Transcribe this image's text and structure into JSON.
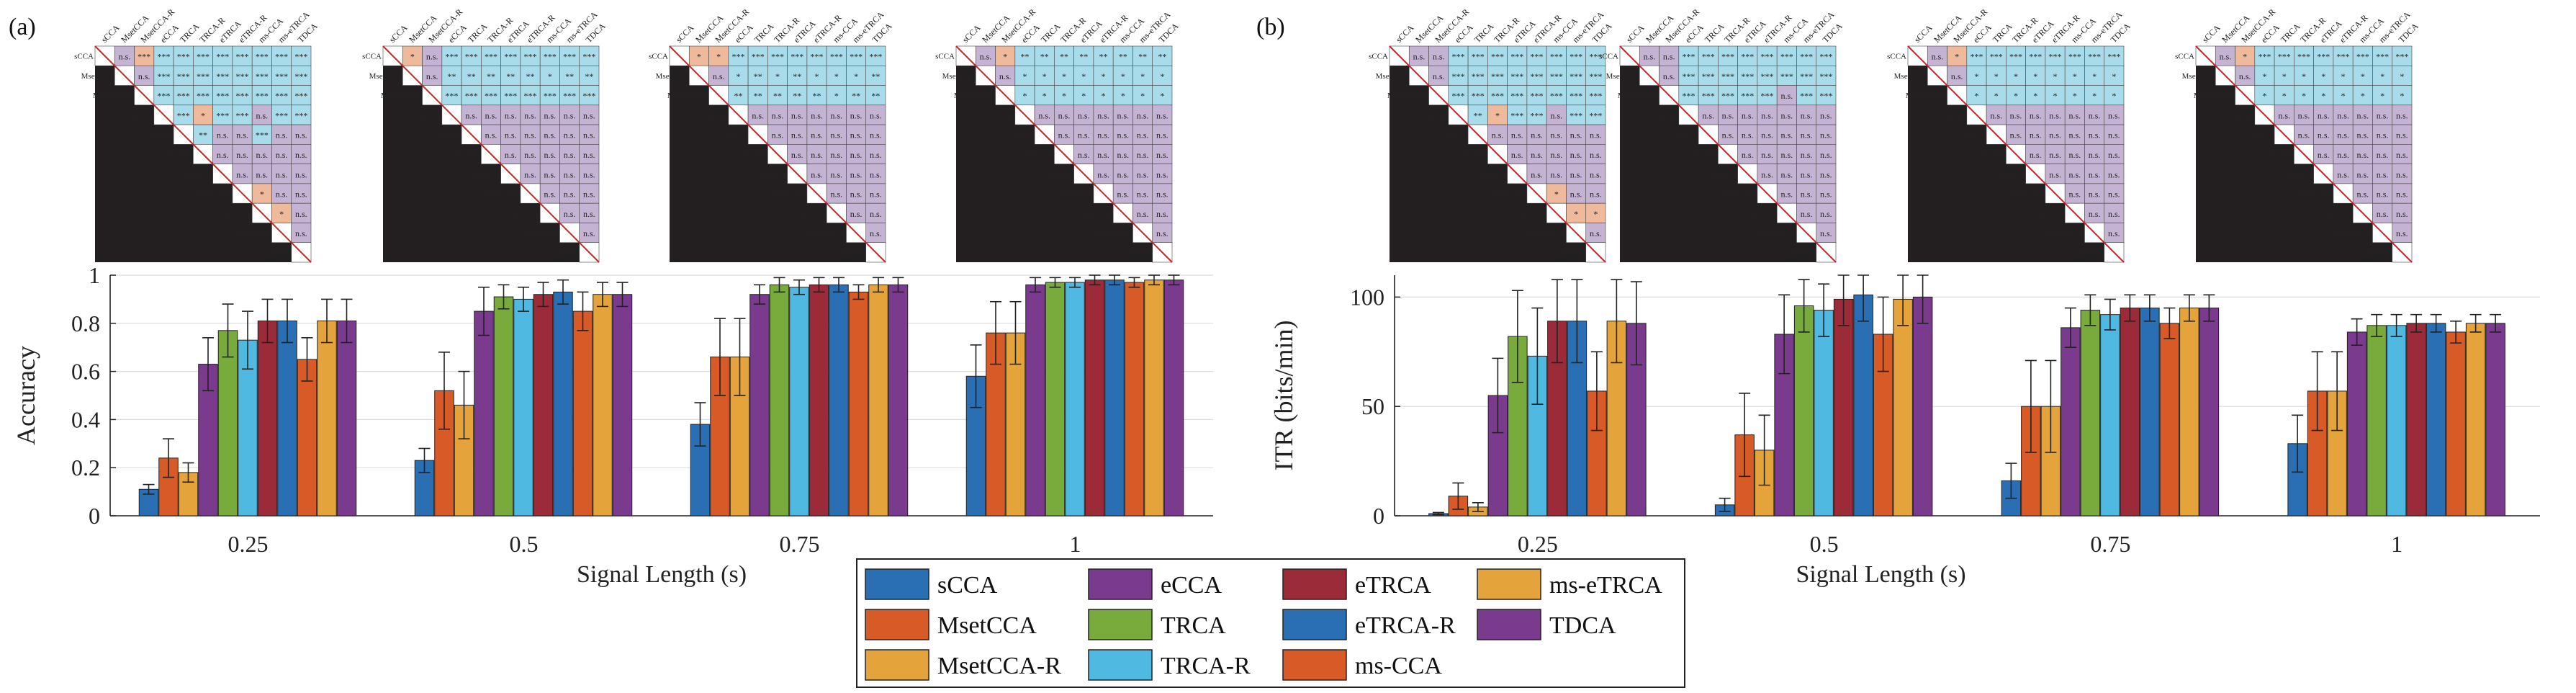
{
  "panels": [
    {
      "label": "(a)",
      "xlabel": "Signal Length (s)",
      "ylabel": "Accuracy",
      "ylim": [
        0,
        1
      ],
      "yticks": [
        "0",
        "0.2",
        "0.4",
        "0.6",
        "0.8",
        "1"
      ],
      "ytick_values": [
        0,
        0.2,
        0.4,
        0.6,
        0.8,
        1
      ]
    },
    {
      "label": "(b)",
      "xlabel": "Signal Length (s)",
      "ylabel": "ITR (bits/min)",
      "ylim": [
        0,
        110
      ],
      "yticks": [
        "0",
        "50",
        "100"
      ],
      "ytick_values": [
        0,
        50,
        100
      ]
    }
  ],
  "legend": {
    "placement": "bottom-center",
    "entries": [
      "sCCA",
      "MsetCCA",
      "MsetCCA-R",
      "eCCA",
      "TRCA",
      "TRCA-R",
      "eTRCA",
      "eTRCA-R",
      "ms-CCA",
      "ms-eTRCA",
      "TDCA"
    ]
  },
  "matrix_methods": [
    "sCCA",
    "MsetCCA",
    "MsetCCA-R",
    "eCCA",
    "TRCA",
    "TRCA-R",
    "eTRCA",
    "eTRCA-R",
    "ms-CCA",
    "ms-eTRCA",
    "TDCA"
  ],
  "significance_colors": {
    "significant_positive": "#a9dcea",
    "significant_negative": "#efb99c",
    "not_significant": "#c5b3d4",
    "lower_triangle": "#231f20",
    "diagonal_line": "#e41a1c"
  },
  "chart_data": [
    {
      "type": "bar",
      "title": "",
      "xlabel": "Signal Length (s)",
      "ylabel": "Accuracy",
      "ylim": [
        0,
        1
      ],
      "grid": true,
      "categories": [
        "0.25",
        "0.5",
        "0.75",
        "1"
      ],
      "series": [
        {
          "name": "sCCA",
          "color": "#2a6fb3",
          "values": [
            0.11,
            0.23,
            0.38,
            0.58
          ],
          "errors": [
            0.02,
            0.05,
            0.09,
            0.13
          ]
        },
        {
          "name": "MsetCCA",
          "color": "#d85b27",
          "values": [
            0.24,
            0.52,
            0.66,
            0.76
          ],
          "errors": [
            0.08,
            0.16,
            0.16,
            0.13
          ]
        },
        {
          "name": "MsetCCA-R",
          "color": "#e4a43b",
          "values": [
            0.18,
            0.46,
            0.66,
            0.76
          ],
          "errors": [
            0.04,
            0.14,
            0.16,
            0.13
          ]
        },
        {
          "name": "eCCA",
          "color": "#7a3a8e",
          "values": [
            0.63,
            0.85,
            0.92,
            0.96
          ],
          "errors": [
            0.11,
            0.1,
            0.04,
            0.03
          ]
        },
        {
          "name": "TRCA",
          "color": "#78ab3c",
          "values": [
            0.77,
            0.91,
            0.96,
            0.97
          ],
          "errors": [
            0.11,
            0.05,
            0.03,
            0.02
          ]
        },
        {
          "name": "TRCA-R",
          "color": "#4fb9e2",
          "values": [
            0.73,
            0.9,
            0.95,
            0.97
          ],
          "errors": [
            0.12,
            0.05,
            0.03,
            0.02
          ]
        },
        {
          "name": "eTRCA",
          "color": "#9c2b3a",
          "values": [
            0.81,
            0.92,
            0.96,
            0.98
          ],
          "errors": [
            0.09,
            0.05,
            0.03,
            0.02
          ]
        },
        {
          "name": "eTRCA-R",
          "color": "#2a6fb3",
          "values": [
            0.81,
            0.93,
            0.96,
            0.98
          ],
          "errors": [
            0.09,
            0.05,
            0.03,
            0.02
          ]
        },
        {
          "name": "ms-CCA",
          "color": "#d85b27",
          "values": [
            0.65,
            0.85,
            0.93,
            0.97
          ],
          "errors": [
            0.09,
            0.08,
            0.03,
            0.02
          ]
        },
        {
          "name": "ms-eTRCA",
          "color": "#e4a43b",
          "values": [
            0.81,
            0.92,
            0.96,
            0.98
          ],
          "errors": [
            0.09,
            0.05,
            0.03,
            0.02
          ]
        },
        {
          "name": "TDCA",
          "color": "#7a3a8e",
          "values": [
            0.81,
            0.92,
            0.96,
            0.98
          ],
          "errors": [
            0.09,
            0.05,
            0.03,
            0.02
          ]
        }
      ]
    },
    {
      "type": "bar",
      "title": "",
      "xlabel": "Signal Length (s)",
      "ylabel": "ITR (bits/min)",
      "ylim": [
        0,
        110
      ],
      "grid": true,
      "categories": [
        "0.25",
        "0.5",
        "0.75",
        "1"
      ],
      "series": [
        {
          "name": "sCCA",
          "color": "#2a6fb3",
          "values": [
            1,
            5,
            16,
            33
          ],
          "errors": [
            0.5,
            3,
            8,
            13
          ]
        },
        {
          "name": "MsetCCA",
          "color": "#d85b27",
          "values": [
            9,
            37,
            50,
            57
          ],
          "errors": [
            6,
            19,
            21,
            18
          ]
        },
        {
          "name": "MsetCCA-R",
          "color": "#e4a43b",
          "values": [
            4,
            30,
            50,
            57
          ],
          "errors": [
            2,
            16,
            21,
            18
          ]
        },
        {
          "name": "eCCA",
          "color": "#7a3a8e",
          "values": [
            55,
            83,
            86,
            84
          ],
          "errors": [
            17,
            18,
            9,
            6
          ]
        },
        {
          "name": "TRCA",
          "color": "#78ab3c",
          "values": [
            82,
            96,
            94,
            87
          ],
          "errors": [
            21,
            12,
            7,
            5
          ]
        },
        {
          "name": "TRCA-R",
          "color": "#4fb9e2",
          "values": [
            73,
            94,
            92,
            87
          ],
          "errors": [
            22,
            12,
            7,
            5
          ]
        },
        {
          "name": "eTRCA",
          "color": "#9c2b3a",
          "values": [
            89,
            99,
            95,
            88
          ],
          "errors": [
            19,
            12,
            6,
            4
          ]
        },
        {
          "name": "eTRCA-R",
          "color": "#2a6fb3",
          "values": [
            89,
            101,
            95,
            88
          ],
          "errors": [
            19,
            12,
            6,
            4
          ]
        },
        {
          "name": "ms-CCA",
          "color": "#d85b27",
          "values": [
            57,
            83,
            88,
            84
          ],
          "errors": [
            18,
            17,
            7,
            5
          ]
        },
        {
          "name": "ms-eTRCA",
          "color": "#e4a43b",
          "values": [
            89,
            99,
            95,
            88
          ],
          "errors": [
            19,
            12,
            6,
            4
          ]
        },
        {
          "name": "TDCA",
          "color": "#7a3a8e",
          "values": [
            88,
            100,
            95,
            88
          ],
          "errors": [
            19,
            12,
            6,
            4
          ]
        }
      ]
    },
    {
      "type": "table",
      "title": "",
      "panel": "(a)",
      "signal_length": "0.25",
      "rows": [
        [
          "n.s.",
          "***",
          "***",
          "***",
          "***",
          "***",
          "***",
          "***",
          "***",
          "***"
        ],
        [
          "n.s.",
          "***",
          "***",
          "***",
          "***",
          "***",
          "***",
          "***",
          "***"
        ],
        [
          "***",
          "***",
          "***",
          "***",
          "***",
          "***",
          "***",
          "***"
        ],
        [
          "***",
          "*",
          "***",
          "***",
          "n.s.",
          "***",
          "***"
        ],
        [
          "**",
          "n.s.",
          "n.s.",
          "***",
          "n.s.",
          "n.s."
        ],
        [
          "n.s.",
          "n.s.",
          "n.s.",
          "n.s.",
          "n.s."
        ],
        [
          "n.s.",
          "n.s.",
          "n.s.",
          "n.s."
        ],
        [
          "*",
          "n.s.",
          "n.s."
        ],
        [
          "*",
          "n.s."
        ],
        [
          "n.s."
        ]
      ]
    },
    {
      "type": "table",
      "title": "",
      "panel": "(a)",
      "signal_length": "0.5",
      "rows": [
        [
          "*",
          "n.s.",
          "***",
          "***",
          "***",
          "***",
          "***",
          "***",
          "***",
          "***"
        ],
        [
          "n.s.",
          "**",
          "**",
          "**",
          "**",
          "**",
          "*",
          "**",
          "**"
        ],
        [
          "***",
          "***",
          "***",
          "***",
          "***",
          "***",
          "***",
          "***"
        ],
        [
          "n.s.",
          "n.s.",
          "n.s.",
          "n.s.",
          "n.s.",
          "n.s.",
          "n.s."
        ],
        [
          "n.s.",
          "n.s.",
          "n.s.",
          "n.s.",
          "n.s.",
          "n.s."
        ],
        [
          "n.s.",
          "n.s.",
          "n.s.",
          "n.s.",
          "n.s."
        ],
        [
          "n.s.",
          "n.s.",
          "n.s.",
          "n.s."
        ],
        [
          "n.s.",
          "n.s.",
          "n.s."
        ],
        [
          "n.s.",
          "n.s."
        ],
        [
          "n.s."
        ]
      ]
    },
    {
      "type": "table",
      "title": "",
      "panel": "(a)",
      "signal_length": "0.75",
      "rows": [
        [
          "*",
          "*",
          "***",
          "***",
          "***",
          "***",
          "***",
          "***",
          "***",
          "***"
        ],
        [
          "n.s.",
          "*",
          "**",
          "*",
          "**",
          "*",
          "*",
          "*",
          "**"
        ],
        [
          "**",
          "**",
          "**",
          "**",
          "**",
          "*",
          "**",
          "**"
        ],
        [
          "n.s.",
          "n.s.",
          "n.s.",
          "n.s.",
          "n.s.",
          "n.s.",
          "n.s."
        ],
        [
          "n.s.",
          "n.s.",
          "n.s.",
          "n.s.",
          "n.s.",
          "n.s."
        ],
        [
          "n.s.",
          "n.s.",
          "n.s.",
          "n.s.",
          "n.s."
        ],
        [
          "n.s.",
          "n.s.",
          "n.s.",
          "n.s."
        ],
        [
          "n.s.",
          "n.s.",
          "n.s."
        ],
        [
          "n.s.",
          "n.s."
        ],
        [
          "n.s."
        ]
      ]
    },
    {
      "type": "table",
      "title": "",
      "panel": "(a)",
      "signal_length": "1",
      "rows": [
        [
          "n.s.",
          "*",
          "**",
          "**",
          "**",
          "**",
          "**",
          "**",
          "**",
          "**"
        ],
        [
          "n.s.",
          "*",
          "*",
          "*",
          "*",
          "*",
          "*",
          "*",
          "*"
        ],
        [
          "*",
          "*",
          "*",
          "*",
          "*",
          "*",
          "*",
          "*"
        ],
        [
          "n.s.",
          "n.s.",
          "n.s.",
          "n.s.",
          "n.s.",
          "n.s.",
          "n.s."
        ],
        [
          "n.s.",
          "n.s.",
          "n.s.",
          "n.s.",
          "n.s.",
          "n.s."
        ],
        [
          "n.s.",
          "n.s.",
          "n.s.",
          "n.s.",
          "n.s."
        ],
        [
          "n.s.",
          "n.s.",
          "n.s.",
          "n.s."
        ],
        [
          "n.s.",
          "n.s.",
          "n.s."
        ],
        [
          "n.s.",
          "n.s."
        ],
        [
          "n.s."
        ]
      ]
    },
    {
      "type": "table",
      "title": "",
      "panel": "(b)",
      "signal_length": "0.25",
      "rows": [
        [
          "n.s.",
          "n.s.",
          "***",
          "***",
          "***",
          "***",
          "***",
          "***",
          "***",
          "***"
        ],
        [
          "n.s.",
          "***",
          "***",
          "***",
          "***",
          "***",
          "***",
          "***",
          "***"
        ],
        [
          "***",
          "***",
          "***",
          "***",
          "***",
          "***",
          "***",
          "***"
        ],
        [
          "**",
          "*",
          "***",
          "***",
          "n.s.",
          "***",
          "***"
        ],
        [
          "n.s.",
          "n.s.",
          "n.s.",
          "n.s.",
          "n.s.",
          "n.s."
        ],
        [
          "n.s.",
          "n.s.",
          "n.s.",
          "n.s.",
          "n.s."
        ],
        [
          "n.s.",
          "n.s.",
          "n.s.",
          "n.s."
        ],
        [
          "*",
          "n.s.",
          "n.s."
        ],
        [
          "*",
          "*"
        ],
        [
          "n.s."
        ]
      ]
    },
    {
      "type": "table",
      "title": "",
      "panel": "(b)",
      "signal_length": "0.5",
      "rows": [
        [
          "n.s.",
          "n.s.",
          "***",
          "***",
          "***",
          "***",
          "***",
          "***",
          "***",
          "***"
        ],
        [
          "n.s.",
          "***",
          "***",
          "***",
          "***",
          "***",
          "***",
          "***",
          "***"
        ],
        [
          "***",
          "***",
          "***",
          "***",
          "***",
          "n.s.",
          "***",
          "***"
        ],
        [
          "n.s.",
          "n.s.",
          "n.s.",
          "n.s.",
          "n.s.",
          "n.s.",
          "n.s."
        ],
        [
          "n.s.",
          "n.s.",
          "n.s.",
          "n.s.",
          "n.s.",
          "n.s."
        ],
        [
          "n.s.",
          "n.s.",
          "n.s.",
          "n.s.",
          "n.s."
        ],
        [
          "n.s.",
          "n.s.",
          "n.s.",
          "n.s."
        ],
        [
          "n.s.",
          "n.s.",
          "n.s."
        ],
        [
          "n.s.",
          "n.s."
        ],
        [
          "n.s."
        ]
      ]
    },
    {
      "type": "table",
      "title": "",
      "panel": "(b)",
      "signal_length": "0.75",
      "rows": [
        [
          "n.s.",
          "*",
          "***",
          "***",
          "***",
          "***",
          "***",
          "***",
          "***",
          "***"
        ],
        [
          "n.s.",
          "*",
          "*",
          "*",
          "*",
          "*",
          "*",
          "*",
          "*"
        ],
        [
          "*",
          "*",
          "*",
          "*",
          "*",
          "*",
          "*",
          "*"
        ],
        [
          "n.s.",
          "n.s.",
          "n.s.",
          "n.s.",
          "n.s.",
          "n.s.",
          "n.s."
        ],
        [
          "n.s.",
          "n.s.",
          "n.s.",
          "n.s.",
          "n.s.",
          "n.s."
        ],
        [
          "n.s.",
          "n.s.",
          "n.s.",
          "n.s.",
          "n.s."
        ],
        [
          "n.s.",
          "n.s.",
          "n.s.",
          "n.s."
        ],
        [
          "n.s.",
          "n.s.",
          "n.s."
        ],
        [
          "n.s.",
          "n.s."
        ],
        [
          "n.s."
        ]
      ]
    },
    {
      "type": "table",
      "title": "",
      "panel": "(b)",
      "signal_length": "1",
      "rows": [
        [
          "n.s.",
          "*",
          "***",
          "***",
          "***",
          "***",
          "***",
          "***",
          "***",
          "***"
        ],
        [
          "n.s.",
          "*",
          "*",
          "*",
          "*",
          "*",
          "*",
          "*",
          "*"
        ],
        [
          "*",
          "*",
          "*",
          "*",
          "*",
          "*",
          "*",
          "*"
        ],
        [
          "n.s.",
          "n.s.",
          "n.s.",
          "n.s.",
          "n.s.",
          "n.s.",
          "n.s."
        ],
        [
          "n.s.",
          "n.s.",
          "n.s.",
          "n.s.",
          "n.s.",
          "n.s."
        ],
        [
          "n.s.",
          "n.s.",
          "n.s.",
          "n.s.",
          "n.s."
        ],
        [
          "n.s.",
          "n.s.",
          "n.s.",
          "n.s."
        ],
        [
          "n.s.",
          "n.s.",
          "n.s."
        ],
        [
          "n.s.",
          "n.s."
        ],
        [
          "n.s."
        ]
      ]
    }
  ]
}
